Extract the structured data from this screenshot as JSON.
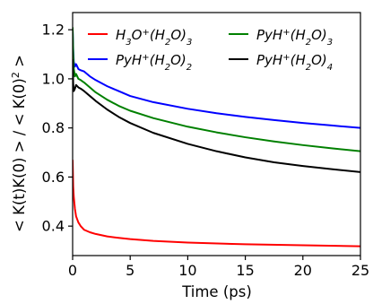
{
  "chart_data": {
    "type": "line",
    "title": "",
    "xlabel": "Time (ps)",
    "ylabel_parts": [
      "< K(t)K(0) > / < K(0)",
      "2",
      " >"
    ],
    "xlim": [
      0,
      25
    ],
    "ylim": [
      0.28,
      1.27
    ],
    "xticks": [
      0,
      5,
      10,
      15,
      20,
      25
    ],
    "yticks": [
      0.4,
      0.6,
      0.8,
      1.0,
      1.2
    ],
    "xtick_labels": [
      "0",
      "5",
      "10",
      "15",
      "20",
      "25"
    ],
    "ytick_labels": [
      "0.4",
      "0.6",
      "0.8",
      "1.0",
      "1.2"
    ],
    "grid": false,
    "legend_position": "top",
    "series": [
      {
        "name_parts": [
          "H",
          "3",
          "O",
          "+",
          "(H",
          "2",
          "O)",
          "3"
        ],
        "color": "#ff0000",
        "x": [
          0,
          0.05,
          0.1,
          0.2,
          0.3,
          0.5,
          0.7,
          1.0,
          1.5,
          2,
          3,
          4,
          5,
          7,
          10,
          15,
          20,
          25
        ],
        "y": [
          0.67,
          0.56,
          0.52,
          0.47,
          0.44,
          0.415,
          0.4,
          0.385,
          0.375,
          0.368,
          0.358,
          0.352,
          0.347,
          0.34,
          0.333,
          0.326,
          0.322,
          0.318
        ]
      },
      {
        "name_parts": [
          "PyH",
          "+",
          "(H",
          "2",
          "O)",
          "2"
        ],
        "color": "#0000ff",
        "x": [
          0,
          0.05,
          0.1,
          0.2,
          0.3,
          0.5,
          0.7,
          1.0,
          1.5,
          2,
          3,
          4,
          5,
          7,
          10,
          12.5,
          15,
          17.5,
          20,
          22.5,
          25
        ],
        "y": [
          1.2,
          1.12,
          1.07,
          1.05,
          1.06,
          1.04,
          1.035,
          1.03,
          1.01,
          0.995,
          0.97,
          0.95,
          0.93,
          0.905,
          0.878,
          0.86,
          0.845,
          0.832,
          0.82,
          0.81,
          0.8
        ]
      },
      {
        "name_parts": [
          "PyH",
          "+",
          "(H",
          "2",
          "O)",
          "3"
        ],
        "color": "#008000",
        "x": [
          0,
          0.05,
          0.1,
          0.2,
          0.3,
          0.5,
          0.7,
          1.0,
          1.5,
          2,
          3,
          4,
          5,
          7,
          10,
          12.5,
          15,
          17.5,
          20,
          22.5,
          25
        ],
        "y": [
          1.21,
          1.1,
          1.04,
          1.01,
          1.02,
          1.0,
          0.995,
          0.985,
          0.965,
          0.945,
          0.915,
          0.89,
          0.87,
          0.84,
          0.805,
          0.782,
          0.762,
          0.745,
          0.73,
          0.717,
          0.705
        ]
      },
      {
        "name_parts": [
          "PyH",
          "+",
          "(H",
          "2",
          "O)",
          "4"
        ],
        "color": "#000000",
        "x": [
          0,
          0.05,
          0.1,
          0.2,
          0.3,
          0.5,
          0.7,
          1.0,
          1.5,
          2,
          3,
          4,
          5,
          7,
          10,
          12.5,
          15,
          17.5,
          20,
          22.5,
          25
        ],
        "y": [
          1.08,
          0.98,
          0.95,
          0.96,
          0.975,
          0.965,
          0.96,
          0.95,
          0.93,
          0.91,
          0.875,
          0.845,
          0.82,
          0.78,
          0.735,
          0.705,
          0.68,
          0.66,
          0.645,
          0.632,
          0.62
        ]
      }
    ]
  }
}
